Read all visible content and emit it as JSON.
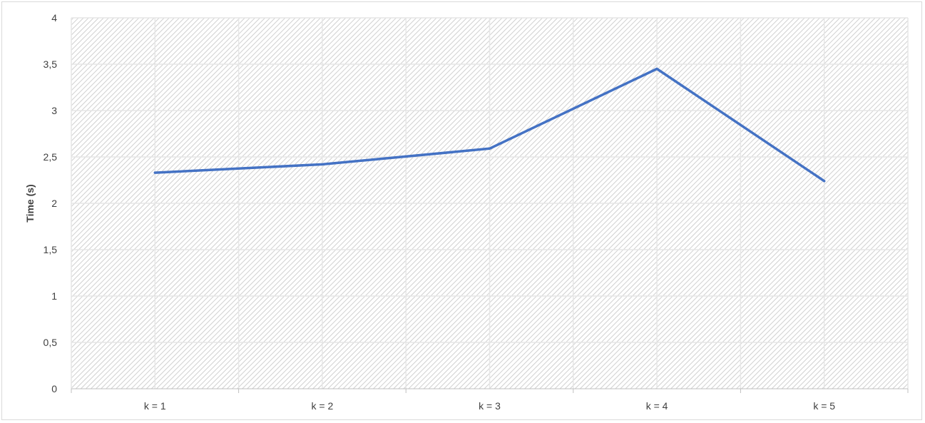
{
  "chart_data": {
    "type": "line",
    "title": "",
    "xlabel": "",
    "ylabel": "Time (s)",
    "categories": [
      "k = 1",
      "k = 2",
      "k = 3",
      "k = 4",
      "k = 5"
    ],
    "series": [
      {
        "values": [
          2.33,
          2.42,
          2.59,
          3.45,
          2.24
        ],
        "color": "#4472c4"
      }
    ],
    "ylim": [
      0,
      4
    ],
    "y_ticks": [
      {
        "value": 0,
        "label": "0"
      },
      {
        "value": 0.5,
        "label": "0,5"
      },
      {
        "value": 1,
        "label": "1"
      },
      {
        "value": 1.5,
        "label": "1,5"
      },
      {
        "value": 2,
        "label": "2"
      },
      {
        "value": 2.5,
        "label": "2,5"
      },
      {
        "value": 3,
        "label": "3"
      },
      {
        "value": 3.5,
        "label": "3,5"
      },
      {
        "value": 4,
        "label": "4"
      }
    ],
    "grid": true,
    "legend": "none",
    "plot_fill": "hatched"
  }
}
